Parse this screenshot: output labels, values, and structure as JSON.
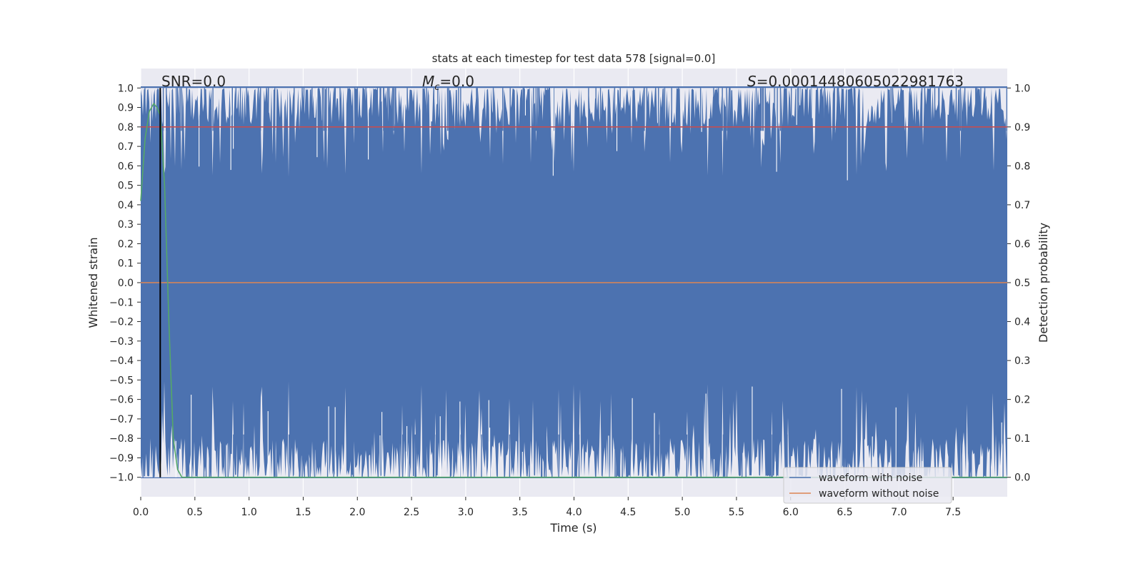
{
  "chart_data": {
    "type": "line",
    "title": "stats at each timestep for test data 578 [signal=0.0]",
    "xlabel": "Time (s)",
    "ylabel_left": "Whitened strain",
    "ylabel_right": "Detection probability",
    "xlim": [
      0.0,
      8.0
    ],
    "ylim_left": [
      -1.1,
      1.1
    ],
    "ylim_right": [
      -0.05,
      1.05
    ],
    "x_ticks": [
      "0.0",
      "0.5",
      "1.0",
      "1.5",
      "2.0",
      "2.5",
      "3.0",
      "3.5",
      "4.0",
      "4.5",
      "5.0",
      "5.5",
      "6.0",
      "6.5",
      "7.0",
      "7.5"
    ],
    "y_ticks_left": [
      "1.0",
      "0.9",
      "0.8",
      "0.7",
      "0.6",
      "0.5",
      "0.4",
      "0.3",
      "0.2",
      "0.1",
      "0.0",
      "−0.1",
      "−0.2",
      "−0.3",
      "−0.4",
      "−0.5",
      "−0.6",
      "−0.7",
      "−0.8",
      "−0.9",
      "−1.0"
    ],
    "y_ticks_right": [
      "1.0",
      "0.9",
      "0.8",
      "0.7",
      "0.6",
      "0.5",
      "0.4",
      "0.3",
      "0.2",
      "0.1",
      "0.0"
    ],
    "grid": true,
    "legend_position": "lower-right",
    "annotations": {
      "snr": "SNR=0.0",
      "mc_symbol": "M",
      "mc_sub": "c",
      "mc_value": "=0.0",
      "s_symbol": "S",
      "s_value": "=0.00014480605022981763"
    },
    "threshold_marker": {
      "x": 0.18
    },
    "series": [
      {
        "name": "waveform with noise",
        "axis": "left",
        "color": "#4c72b0",
        "description": "dense noise filling roughly -1.0 to 1.0"
      },
      {
        "name": "waveform without noise",
        "axis": "left",
        "color": "#dd8452",
        "x": [
          0.0,
          8.0
        ],
        "y": [
          0.0,
          0.0
        ]
      },
      {
        "axis": "right",
        "color": "#c44e52",
        "x": [
          0.0,
          8.0
        ],
        "y": [
          0.9,
          0.9
        ]
      },
      {
        "axis": "right",
        "color": "#55a868",
        "x": [
          0.0,
          0.04,
          0.08,
          0.12,
          0.15,
          0.18,
          0.22,
          0.26,
          0.3,
          0.34,
          0.38,
          1.0,
          2.0,
          3.0,
          4.0,
          5.0,
          6.0,
          7.0,
          8.0
        ],
        "y": [
          0.71,
          0.87,
          0.94,
          0.96,
          0.95,
          0.93,
          0.75,
          0.4,
          0.1,
          0.02,
          0.0,
          0.0,
          0.0,
          0.0,
          0.0,
          0.0,
          0.0,
          0.0,
          0.0
        ]
      }
    ]
  }
}
